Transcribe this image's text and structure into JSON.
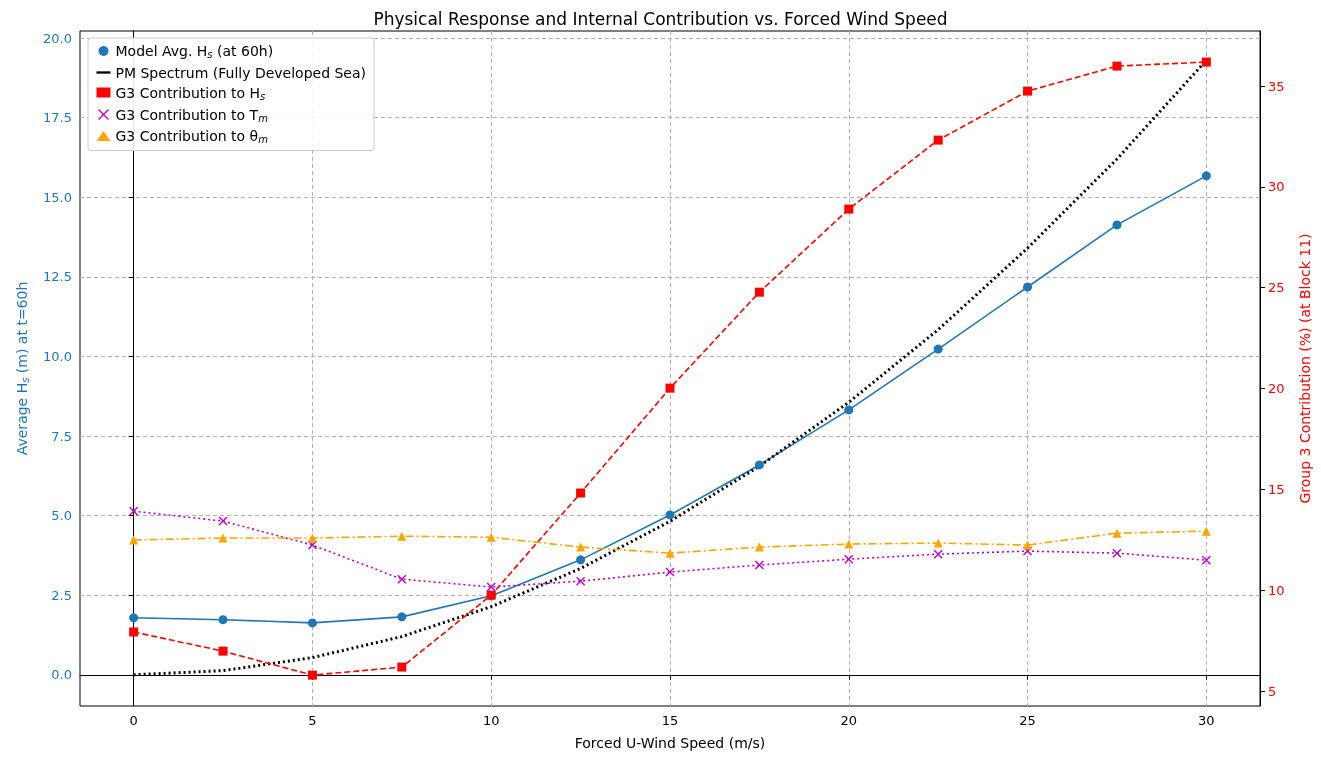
{
  "chart_data": {
    "type": "line",
    "title": "Physical Response and Internal Contribution vs. Forced Wind Speed",
    "xlabel": "Forced U-Wind Speed (m/s)",
    "ylabel": "Average H$_{s}$ (m) at t=60h",
    "y2label": "Group 3 Contribution (%) (at Block 11)",
    "x": [
      0,
      2.5,
      5,
      7.5,
      10,
      12.5,
      15,
      17.5,
      20,
      22.5,
      25,
      27.5,
      30
    ],
    "xlim": [
      -1.5,
      31.5
    ],
    "xticks": [
      0,
      5,
      10,
      15,
      20,
      25,
      30
    ],
    "ylim": [
      -0.98,
      20.22
    ],
    "yticks": [
      {
        "value": 0,
        "label": "0.0"
      },
      {
        "value": 2.5,
        "label": "2.5"
      },
      {
        "value": 5,
        "label": "5.0"
      },
      {
        "value": 7.5,
        "label": "7.5"
      },
      {
        "value": 10,
        "label": "10.0"
      },
      {
        "value": 12.5,
        "label": "12.5"
      },
      {
        "value": 15,
        "label": "15.0"
      },
      {
        "value": 17.5,
        "label": "17.5"
      },
      {
        "value": 20,
        "label": "20.0"
      }
    ],
    "y2lim": [
      4.26,
      37.73
    ],
    "y2ticks": [
      5,
      10,
      15,
      20,
      25,
      30,
      35
    ],
    "grid": true,
    "legend": "top left",
    "series": [
      {
        "name": "Model Avg. H$_{s}$ (at 60h)",
        "color": "#1f77b4",
        "marker": "circle",
        "line_style": "solid",
        "values": [
          1.79,
          1.73,
          1.63,
          1.82,
          2.48,
          3.61,
          5.02,
          6.59,
          8.32,
          10.23,
          12.18,
          14.13,
          15.67
        ]
      },
      {
        "name": "PM Spectrum (Fully Developed Sea)",
        "color": "#000000",
        "marker": "none",
        "line_style": "dotted",
        "values": [
          0,
          0.13,
          0.54,
          1.2,
          2.14,
          3.34,
          4.82,
          6.55,
          8.56,
          10.84,
          13.4,
          16.2,
          19.3
        ]
      },
      {
        "name": "G3 Contribution to H$_{s}$",
        "color": "#ff0000",
        "marker": "square",
        "line_style": "dashed",
        "axis": "y2",
        "values": [
          7.93,
          6.98,
          5.79,
          6.19,
          9.76,
          14.82,
          20.02,
          24.78,
          28.9,
          32.32,
          34.75,
          35.99,
          36.19
        ]
      },
      {
        "name": "G3 Contribution to T$_{m}$",
        "color": "#bf00bf",
        "marker": "cross",
        "line_style": "dotted",
        "axis": "y2",
        "values": [
          13.92,
          13.43,
          12.24,
          10.55,
          10.16,
          10.45,
          10.9,
          11.25,
          11.54,
          11.79,
          11.94,
          11.84,
          11.49
        ]
      },
      {
        "name": "G3 Contribution to θ$_{m}$",
        "color": "#ffa500",
        "marker": "triangle",
        "line_style": "dashdot",
        "axis": "y2",
        "values": [
          12.49,
          12.59,
          12.59,
          12.68,
          12.63,
          12.14,
          11.84,
          12.14,
          12.29,
          12.34,
          12.24,
          12.83,
          12.93
        ]
      }
    ]
  }
}
